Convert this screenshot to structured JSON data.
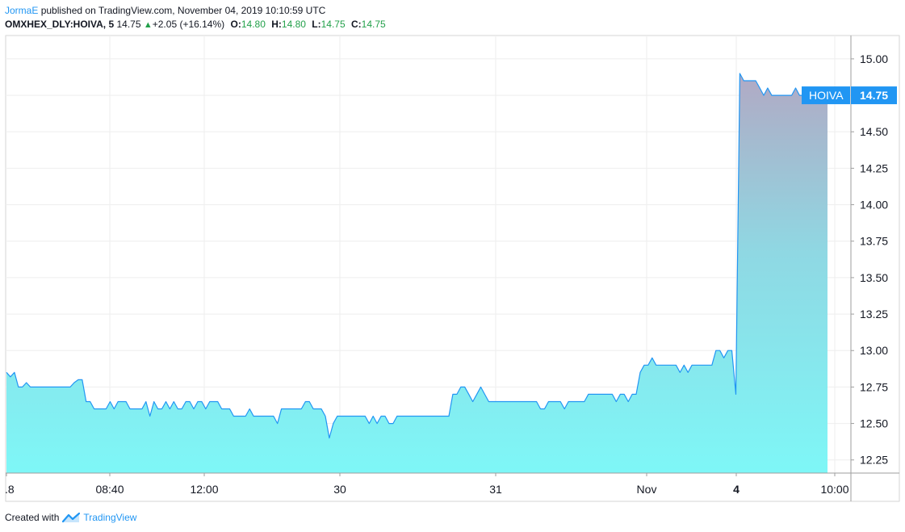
{
  "header": {
    "author": "JormaE",
    "published_text": "published on TradingView.com, November 04, 2019 10:10:59 UTC",
    "symbol": "OMXHEX_DLY:HOIVA, 5",
    "last": "14.75",
    "change": "+2.05 (+16.14%)",
    "o_label": "O:",
    "o_value": "14.80",
    "h_label": "H:",
    "h_value": "14.80",
    "l_label": "L:",
    "l_value": "14.75",
    "c_label": "C:",
    "c_value": "14.75"
  },
  "footer": {
    "created_with": "Created with",
    "brand": "TradingView"
  },
  "colors": {
    "line": "#2196f3",
    "fill_bottom": "#7ef7f7",
    "fill_top": "#b1a9c4",
    "price_tag": "#2196f3",
    "grid": "#eeeeee"
  },
  "chart_data": {
    "type": "area",
    "ylim": [
      12.16,
      15.16
    ],
    "y_ticks": [
      "15.00",
      "14.75",
      "14.50",
      "14.25",
      "14.00",
      "13.75",
      "13.50",
      "13.25",
      "13.00",
      "12.75",
      "12.50",
      "12.25"
    ],
    "x_ticks": [
      ".8",
      "08:40",
      "12:00",
      "30",
      "31",
      "Nov",
      "4",
      "10:00"
    ],
    "x_tick_bold": [
      false,
      false,
      false,
      false,
      false,
      false,
      true,
      false
    ],
    "last_price_label": {
      "symbol": "HOIVA",
      "value": "14.75"
    },
    "series": [
      {
        "values": [
          12.85,
          12.82,
          12.85,
          12.75,
          12.75,
          12.78,
          12.75,
          12.75,
          12.75,
          12.75,
          12.75,
          12.75,
          12.75,
          12.75,
          12.75,
          12.75,
          12.75,
          12.78,
          12.8,
          12.8,
          12.65,
          12.65,
          12.6,
          12.6,
          12.6,
          12.6,
          12.65,
          12.6,
          12.65,
          12.65,
          12.65,
          12.6,
          12.6,
          12.6,
          12.6,
          12.65,
          12.55,
          12.65,
          12.6,
          12.6,
          12.65,
          12.6,
          12.65,
          12.6,
          12.6,
          12.65,
          12.65,
          12.6,
          12.65,
          12.65,
          12.6,
          12.65,
          12.65,
          12.65,
          12.6,
          12.6,
          12.6,
          12.55,
          12.55,
          12.55,
          12.55,
          12.6,
          12.55,
          12.55,
          12.55,
          12.55,
          12.55,
          12.55,
          12.5,
          12.6,
          12.6,
          12.6,
          12.6,
          12.6,
          12.6,
          12.65,
          12.65,
          12.6,
          12.6,
          12.6,
          12.55,
          12.4,
          12.5,
          12.55,
          12.55,
          12.55,
          12.55,
          12.55,
          12.55,
          12.55,
          12.55,
          12.5,
          12.55,
          12.5,
          12.55,
          12.55,
          12.5,
          12.5,
          12.55,
          12.55,
          12.55,
          12.55,
          12.55,
          12.55,
          12.55,
          12.55,
          12.55,
          12.55,
          12.55,
          12.55,
          12.55,
          12.55,
          12.7,
          12.7,
          12.75,
          12.75,
          12.7,
          12.65,
          12.7,
          12.75,
          12.7,
          12.65,
          12.65,
          12.65,
          12.65,
          12.65,
          12.65,
          12.65,
          12.65,
          12.65,
          12.65,
          12.65,
          12.65,
          12.65,
          12.6,
          12.6,
          12.65,
          12.65,
          12.65,
          12.65,
          12.6,
          12.65,
          12.65,
          12.65,
          12.65,
          12.65,
          12.7,
          12.7,
          12.7,
          12.7,
          12.7,
          12.7,
          12.7,
          12.65,
          12.7,
          12.7,
          12.65,
          12.7,
          12.7,
          12.85,
          12.9,
          12.9,
          12.95,
          12.9,
          12.9,
          12.9,
          12.9,
          12.9,
          12.9,
          12.85,
          12.9,
          12.85,
          12.9,
          12.9,
          12.9,
          12.9,
          12.9,
          12.9,
          13.0,
          13.0,
          12.95,
          13.0,
          13.0,
          12.7,
          14.9,
          14.85,
          14.85,
          14.85,
          14.85,
          14.8,
          14.75,
          14.8,
          14.75,
          14.75,
          14.75,
          14.75,
          14.75,
          14.75,
          14.8,
          14.75,
          14.75,
          14.75,
          14.75,
          14.75,
          14.75,
          14.75,
          14.75
        ]
      }
    ]
  }
}
